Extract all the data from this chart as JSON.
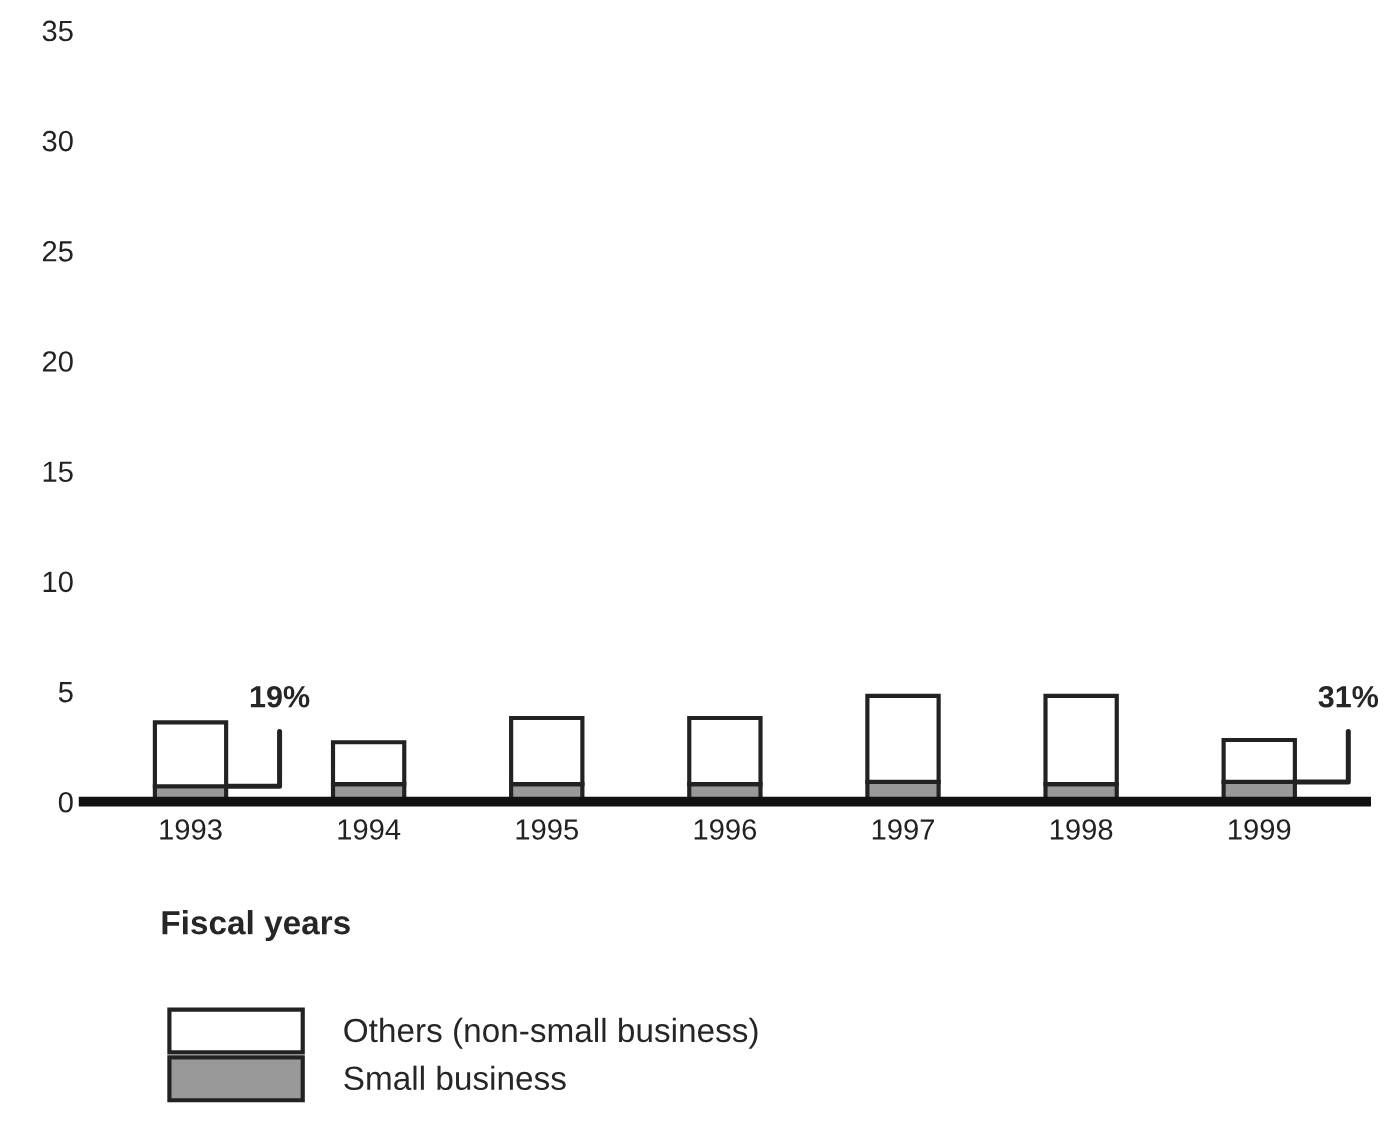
{
  "chart_data": {
    "type": "bar",
    "stacked": true,
    "xlabel": "Fiscal years",
    "categories": [
      "1993",
      "1994",
      "1995",
      "1996",
      "1997",
      "1998",
      "1999"
    ],
    "series": [
      {
        "name": "Small business",
        "color": "#999999",
        "values": [
          0.7,
          0.8,
          0.8,
          0.8,
          0.9,
          0.8,
          0.9
        ]
      },
      {
        "name": "Others (non-small business)",
        "color": "#ffffff",
        "values": [
          2.9,
          1.9,
          3.0,
          3.0,
          3.9,
          4.0,
          1.9
        ]
      }
    ],
    "ylim": [
      0,
      35
    ],
    "yticks": [
      0,
      5,
      10,
      15,
      20,
      25,
      30,
      35
    ],
    "grid": false,
    "legend": "bottom",
    "annotations": [
      {
        "text": "19%",
        "x": "1993",
        "y": 0.7
      },
      {
        "text": "31%",
        "x": "1999",
        "y": 0.9
      }
    ]
  }
}
